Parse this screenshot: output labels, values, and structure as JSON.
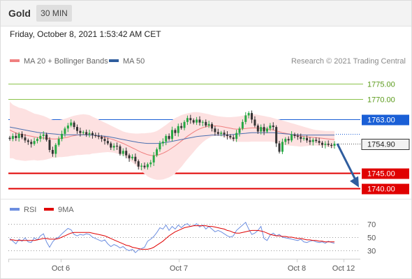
{
  "header": {
    "title": "Gold",
    "timeframe": "30 MIN"
  },
  "datetime": "Friday, October 8, 2021 1:53:42 AM CET",
  "colors": {
    "up": "#27a844",
    "down": "#333333",
    "bollinger": "#fde1e1",
    "ma20": "#f08080",
    "ma50": "#4a6fb0",
    "resistance": "#8bc34a",
    "pivot": "#1a5fd6",
    "support": "#e00000",
    "arrow": "#2f5d9e",
    "rsi": "#6c8ee0",
    "rsi_ma": "#e00000"
  },
  "chart_data": [
    {
      "type": "candlestick",
      "legend": [
        {
          "label": "MA 20 + Bollinger Bands",
          "color": "#f08080"
        },
        {
          "label": "MA 50",
          "color": "#2f5d9e"
        }
      ],
      "watermark": "Research © 2021 Trading Central",
      "ylim": [
        1737.8,
        1779.5
      ],
      "x_ticks": [
        "Oct 6",
        "Oct 7",
        "Oct 8",
        "Oct 12"
      ],
      "levels": [
        {
          "value": 1775.0,
          "label": "1775.00",
          "kind": "resistance"
        },
        {
          "value": 1770.0,
          "label": "1770.00",
          "kind": "resistance"
        },
        {
          "value": 1763.0,
          "label": "1763.00",
          "kind": "pivot"
        },
        {
          "value": 1745.0,
          "label": "1745.00",
          "kind": "support"
        },
        {
          "value": 1740.0,
          "label": "1740.00",
          "kind": "support"
        }
      ],
      "last_price": {
        "value": 1754.9,
        "label": "1754.90"
      },
      "close": [
        1756.5,
        1757.5,
        1756.8,
        1758.2,
        1757.0,
        1756.0,
        1755.5,
        1754.8,
        1755.8,
        1756.5,
        1757.5,
        1758.0,
        1756.2,
        1752.8,
        1751.5,
        1754.5,
        1756.5,
        1758.2,
        1760.0,
        1761.0,
        1762.0,
        1760.5,
        1759.2,
        1758.5,
        1758.8,
        1758.0,
        1758.5,
        1757.8,
        1757.5,
        1757.2,
        1756.5,
        1755.8,
        1755.0,
        1753.6,
        1754.2,
        1754.0,
        1751.5,
        1752.5,
        1751.0,
        1750.0,
        1750.5,
        1749.0,
        1747.2,
        1747.5,
        1747.0,
        1748.0,
        1748.6,
        1751.0,
        1753.0,
        1755.0,
        1755.6,
        1757.5,
        1756.5,
        1759.5,
        1758.5,
        1760.8,
        1760.2,
        1762.2,
        1763.5,
        1762.8,
        1762.0,
        1763.0,
        1762.0,
        1762.2,
        1761.0,
        1761.5,
        1760.0,
        1758.8,
        1758.2,
        1758.6,
        1758.0,
        1757.5,
        1757.0,
        1756.5,
        1758.5,
        1760.0,
        1762.2,
        1764.4,
        1765.2,
        1763.0,
        1761.0,
        1759.0,
        1760.5,
        1759.0,
        1760.0,
        1761.0,
        1760.5,
        1755.0,
        1752.2,
        1755.5,
        1756.5,
        1756.0,
        1758.0,
        1757.5,
        1757.2,
        1756.5,
        1756.8,
        1756.0,
        1755.5,
        1756.2,
        1755.8,
        1755.2,
        1754.5,
        1754.9,
        1754.5,
        1754.2,
        1754.9
      ],
      "bb_upper": [
        1769.0,
        1768.0,
        1767.5,
        1767.0,
        1766.8,
        1766.5,
        1766.0,
        1765.5,
        1765.0,
        1764.8,
        1764.5,
        1764.2,
        1763.8,
        1763.3,
        1762.9,
        1762.8,
        1762.8,
        1763.0,
        1763.3,
        1763.6,
        1764.0,
        1764.3,
        1764.5,
        1764.7,
        1764.8,
        1764.7,
        1764.5,
        1764.0,
        1763.5,
        1763.0,
        1762.5,
        1762.0,
        1761.5,
        1761.0,
        1760.5,
        1760.0,
        1759.5,
        1759.0,
        1758.7,
        1758.5,
        1758.4,
        1758.3,
        1758.3,
        1758.4,
        1758.4,
        1758.5,
        1758.6,
        1758.8,
        1759.2,
        1759.8,
        1760.5,
        1761.2,
        1762.0,
        1762.8,
        1763.5,
        1764.0,
        1764.5,
        1764.8,
        1765.1,
        1765.3,
        1765.5,
        1765.5,
        1765.4,
        1765.2,
        1765.0,
        1764.8,
        1764.5,
        1764.3,
        1764.1,
        1764.0,
        1763.9,
        1763.8,
        1763.8,
        1763.9,
        1764.0,
        1764.1,
        1764.3,
        1764.5,
        1764.7,
        1764.8,
        1764.8,
        1764.6,
        1764.4,
        1764.2,
        1764.0,
        1763.8,
        1763.5,
        1763.2,
        1763.0,
        1762.7,
        1762.4,
        1762.1,
        1761.8,
        1761.5,
        1761.2,
        1760.9,
        1760.6,
        1760.3,
        1760.0,
        1759.7,
        1759.5,
        1759.4,
        1759.3,
        1759.2,
        1759.2,
        1759.2,
        1759.2
      ],
      "ma20": [
        1759.5,
        1759.0,
        1758.5,
        1758.2,
        1758.0,
        1757.8,
        1757.6,
        1757.4,
        1757.2,
        1757.0,
        1756.9,
        1756.8,
        1756.7,
        1756.6,
        1756.5,
        1756.5,
        1756.6,
        1756.7,
        1756.9,
        1757.1,
        1757.4,
        1757.6,
        1757.8,
        1757.9,
        1758.0,
        1758.0,
        1757.9,
        1757.8,
        1757.6,
        1757.4,
        1757.2,
        1757.0,
        1756.8,
        1756.5,
        1756.2,
        1755.8,
        1755.4,
        1755.0,
        1754.5,
        1754.0,
        1753.5,
        1753.0,
        1752.5,
        1752.0,
        1751.6,
        1751.2,
        1751.0,
        1750.9,
        1751.0,
        1751.3,
        1751.7,
        1752.2,
        1752.8,
        1753.5,
        1754.2,
        1755.0,
        1755.8,
        1756.6,
        1757.4,
        1758.1,
        1758.8,
        1759.4,
        1759.9,
        1760.3,
        1760.6,
        1760.8,
        1760.9,
        1760.9,
        1760.8,
        1760.7,
        1760.5,
        1760.3,
        1760.1,
        1759.9,
        1759.8,
        1759.8,
        1759.9,
        1760.0,
        1760.1,
        1760.2,
        1760.2,
        1760.1,
        1760.0,
        1759.9,
        1759.8,
        1759.7,
        1759.5,
        1759.2,
        1758.9,
        1758.6,
        1758.4,
        1758.2,
        1758.0,
        1757.8,
        1757.6,
        1757.4,
        1757.3,
        1757.2,
        1757.1,
        1757.0,
        1756.9,
        1756.8,
        1756.7,
        1756.6,
        1756.5,
        1756.4,
        1756.3
      ],
      "ma50": [
        1760.5,
        1760.3,
        1760.1,
        1759.9,
        1759.7,
        1759.5,
        1759.3,
        1759.1,
        1758.9,
        1758.7,
        1758.6,
        1758.5,
        1758.4,
        1758.3,
        1758.2,
        1758.1,
        1758.0,
        1757.9,
        1757.9,
        1757.9,
        1757.9,
        1757.9,
        1757.9,
        1757.9,
        1757.9,
        1757.9,
        1757.8,
        1757.8,
        1757.7,
        1757.6,
        1757.5,
        1757.4,
        1757.3,
        1757.1,
        1756.9,
        1756.7,
        1756.5,
        1756.3,
        1756.1,
        1755.9,
        1755.7,
        1755.5,
        1755.3,
        1755.2,
        1755.1,
        1755.0,
        1755.0,
        1755.0,
        1755.0,
        1755.1,
        1755.2,
        1755.3,
        1755.5,
        1755.7,
        1755.9,
        1756.1,
        1756.3,
        1756.5,
        1756.7,
        1756.9,
        1757.1,
        1757.3,
        1757.4,
        1757.5,
        1757.6,
        1757.7,
        1757.8,
        1757.8,
        1757.8,
        1757.8,
        1757.8,
        1757.8,
        1757.9,
        1758.0,
        1758.1,
        1758.2,
        1758.3,
        1758.4,
        1758.5,
        1758.6,
        1758.6,
        1758.6,
        1758.6,
        1758.6,
        1758.6,
        1758.6,
        1758.6,
        1758.5,
        1758.4,
        1758.3,
        1758.2,
        1758.1,
        1758.0,
        1757.9,
        1757.8,
        1757.8,
        1757.8,
        1757.8,
        1757.8,
        1757.8,
        1757.8,
        1757.8,
        1757.8,
        1757.8,
        1757.8,
        1757.8,
        1757.8
      ]
    },
    {
      "type": "line",
      "legend": [
        {
          "label": "RSI",
          "color": "#6c8ee0"
        },
        {
          "label": "9MA",
          "color": "#e00000"
        }
      ],
      "ylim": [
        22,
        78
      ],
      "y_ticks": [
        70,
        50,
        30
      ],
      "rsi": [
        48,
        44,
        40,
        47,
        44,
        49,
        43,
        42,
        49,
        46,
        52,
        55,
        43,
        35,
        43,
        48,
        50,
        55,
        59,
        63,
        61,
        54,
        52,
        54,
        53,
        55,
        54,
        50,
        48,
        46,
        44,
        46,
        40,
        36,
        39,
        37,
        34,
        36,
        32,
        30,
        32,
        27,
        31,
        33,
        35,
        44,
        47,
        51,
        57,
        64,
        62,
        68,
        60,
        66,
        62,
        68,
        64,
        68,
        70,
        66,
        67,
        70,
        65,
        68,
        62,
        66,
        62,
        58,
        60,
        58,
        55,
        52,
        50,
        52,
        60,
        64,
        68,
        72,
        62,
        54,
        56,
        60,
        66,
        48,
        45,
        53,
        56,
        52,
        54,
        50,
        49,
        48,
        47,
        46,
        45,
        47,
        43,
        42,
        44,
        45,
        43,
        42,
        43,
        41,
        44,
        42,
        41
      ],
      "ma9": [
        46,
        46,
        45,
        45,
        45,
        45,
        45,
        45,
        45,
        46,
        47,
        48,
        48,
        47,
        47,
        47,
        48,
        50,
        52,
        54,
        56,
        57,
        57,
        57,
        57,
        57,
        57,
        56,
        55,
        54,
        53,
        52,
        50,
        48,
        46,
        44,
        42,
        40,
        38,
        37,
        35,
        34,
        33,
        32,
        32,
        32,
        33,
        35,
        38,
        41,
        44,
        48,
        52,
        55,
        58,
        60,
        62,
        64,
        65,
        66,
        67,
        67,
        67,
        67,
        67,
        66,
        66,
        65,
        64,
        63,
        62,
        60,
        59,
        57,
        56,
        56,
        57,
        58,
        59,
        60,
        60,
        60,
        59,
        58,
        56,
        54,
        53,
        52,
        52,
        51,
        51,
        50,
        50,
        49,
        48,
        48,
        47,
        46,
        46,
        45,
        45,
        44,
        44,
        43,
        43,
        43,
        43
      ]
    }
  ]
}
